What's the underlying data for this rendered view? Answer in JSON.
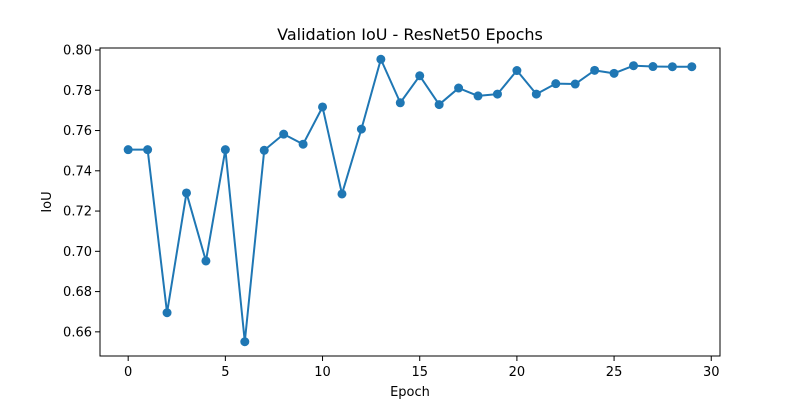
{
  "chart_data": {
    "type": "line",
    "title": "Validation IoU - ResNet50 Epochs",
    "xlabel": "Epoch",
    "ylabel": "IoU",
    "xlim": [
      -1.45,
      30.45
    ],
    "ylim": [
      0.648,
      0.801
    ],
    "xticks": [
      0,
      5,
      10,
      15,
      20,
      25,
      30
    ],
    "yticks": [
      0.66,
      0.68,
      0.7,
      0.72,
      0.74,
      0.76,
      0.78,
      0.8
    ],
    "ytick_format": 2,
    "grid": false,
    "marker": "circle",
    "color": "#1f77b4",
    "series": [
      {
        "x": [
          0,
          1,
          2,
          3,
          4,
          5,
          6,
          7,
          8,
          9,
          10,
          11,
          12,
          13,
          14,
          15,
          16,
          17,
          18,
          19,
          20,
          21,
          22,
          23,
          24,
          25,
          26,
          27,
          28,
          29
        ],
        "values": [
          0.7505,
          0.7505,
          0.6695,
          0.729,
          0.6952,
          0.7505,
          0.6551,
          0.7502,
          0.7582,
          0.7532,
          0.7717,
          0.7285,
          0.7607,
          0.7954,
          0.7738,
          0.7872,
          0.7729,
          0.7811,
          0.7772,
          0.7781,
          0.7898,
          0.7781,
          0.7833,
          0.7831,
          0.7899,
          0.7884,
          0.7922,
          0.7918,
          0.7917,
          0.7917
        ]
      }
    ]
  }
}
